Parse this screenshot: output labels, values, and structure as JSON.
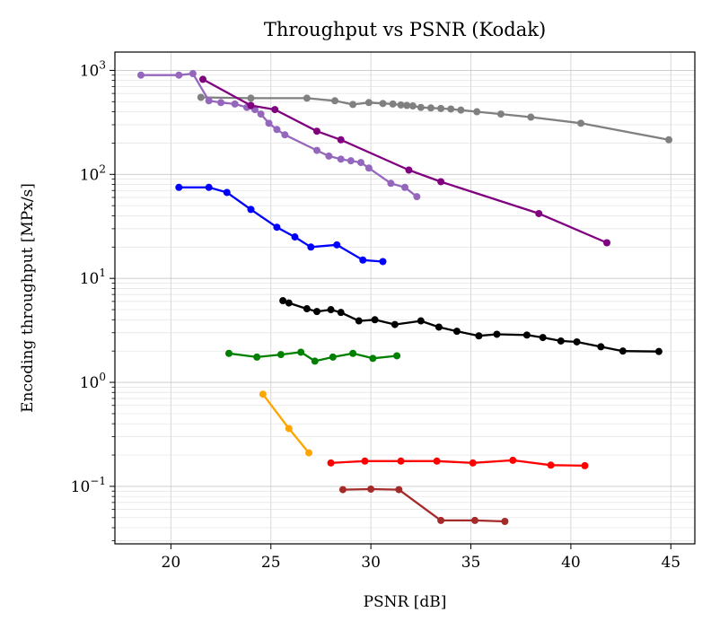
{
  "chart_data": {
    "type": "line",
    "title": "Throughput vs PSNR (Kodak)",
    "xlabel": "PSNR [dB]",
    "ylabel": "Encoding throughput [MPx/s]",
    "y_scale": "log",
    "xlim": [
      17.2,
      46.2
    ],
    "ylim": [
      0.028,
      1500
    ],
    "x_ticks": [
      20,
      25,
      30,
      35,
      40,
      45
    ],
    "x_tick_labels": [
      "20",
      "25",
      "30",
      "35",
      "40",
      "45"
    ],
    "y_ticks": [
      0.1,
      1,
      10,
      100,
      1000
    ],
    "y_tick_bases": [
      "10",
      "10",
      "10",
      "10",
      "10"
    ],
    "y_tick_exponents": [
      "−1",
      "0",
      "1",
      "2",
      "3"
    ],
    "grid": true,
    "legend": "none",
    "series": [
      {
        "color": "#808080",
        "x": [
          21.5,
          24.0,
          26.8,
          28.2,
          29.1,
          29.9,
          30.6,
          31.1,
          31.5,
          31.8,
          32.1,
          32.5,
          33.0,
          33.5,
          34.0,
          34.5,
          35.3,
          36.5,
          38.0,
          40.5,
          44.9
        ],
        "y": [
          550,
          540,
          540,
          510,
          470,
          490,
          480,
          475,
          465,
          460,
          455,
          440,
          435,
          430,
          425,
          415,
          400,
          380,
          355,
          310,
          215
        ]
      },
      {
        "color": "#9467bd",
        "x": [
          18.5,
          20.4,
          21.1,
          21.9,
          22.5,
          23.2,
          23.8,
          24.2,
          24.5,
          24.9,
          25.3,
          25.7,
          27.3,
          27.9,
          28.5,
          29.0,
          29.5,
          29.9,
          31.0,
          31.7,
          32.3
        ],
        "y": [
          900,
          900,
          930,
          510,
          490,
          475,
          440,
          420,
          380,
          310,
          270,
          240,
          170,
          150,
          140,
          135,
          130,
          115,
          82,
          75,
          61
        ]
      },
      {
        "color": "#800080",
        "x": [
          21.6,
          24.0,
          25.2,
          27.3,
          28.5,
          31.9,
          33.5,
          38.4,
          41.8
        ],
        "y": [
          820,
          460,
          420,
          260,
          215,
          110,
          85,
          42,
          22
        ]
      },
      {
        "color": "#0000ff",
        "x": [
          20.4,
          21.9,
          22.8,
          24.0,
          25.3,
          26.2,
          27.0,
          28.3,
          29.6,
          30.6
        ],
        "y": [
          75,
          75,
          67,
          46,
          31,
          25,
          20,
          21,
          15,
          14.5
        ]
      },
      {
        "color": "#000000",
        "x": [
          25.6,
          25.9,
          26.8,
          27.3,
          28.0,
          28.5,
          29.4,
          30.2,
          31.2,
          32.5,
          33.4,
          34.3,
          35.4,
          36.3,
          37.8,
          38.6,
          39.5,
          40.3,
          41.5,
          42.6,
          44.4
        ],
        "y": [
          6.1,
          5.8,
          5.1,
          4.8,
          5.0,
          4.7,
          3.9,
          4.0,
          3.6,
          3.9,
          3.4,
          3.1,
          2.8,
          2.9,
          2.85,
          2.7,
          2.5,
          2.45,
          2.2,
          2.0,
          1.98
        ]
      },
      {
        "color": "#008000",
        "x": [
          22.9,
          24.3,
          25.5,
          26.5,
          27.2,
          28.1,
          29.1,
          30.1,
          31.3
        ],
        "y": [
          1.9,
          1.75,
          1.85,
          1.95,
          1.6,
          1.75,
          1.9,
          1.7,
          1.8
        ]
      },
      {
        "color": "#ffa500",
        "x": [
          24.6,
          25.9,
          26.9
        ],
        "y": [
          0.77,
          0.36,
          0.21
        ]
      },
      {
        "color": "#ff0000",
        "x": [
          28.0,
          29.7,
          31.5,
          33.3,
          35.1,
          37.1,
          39.0,
          40.7
        ],
        "y": [
          0.168,
          0.175,
          0.175,
          0.175,
          0.168,
          0.178,
          0.16,
          0.158
        ]
      },
      {
        "color": "#a52a2a",
        "x": [
          28.6,
          30.0,
          31.4,
          33.5,
          35.2,
          36.7
        ],
        "y": [
          0.093,
          0.094,
          0.093,
          0.047,
          0.047,
          0.046
        ]
      }
    ]
  }
}
